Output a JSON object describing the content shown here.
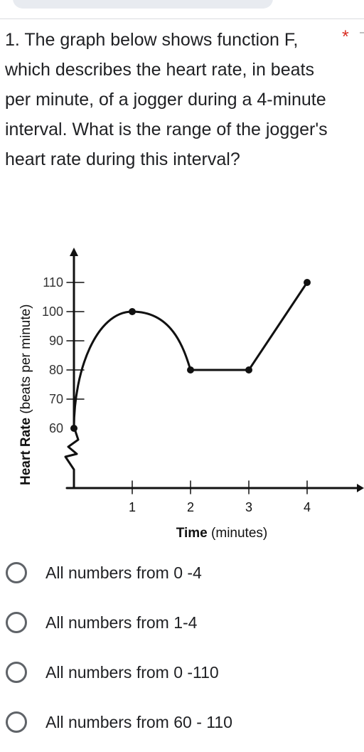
{
  "question": {
    "number_text": "1. The graph below shows function F, which describes the heart rate, in beats per minute, of a jogger during a 4-minute interval. What is the range of the jogger's heart rate during this interval?",
    "required_marker": "*"
  },
  "chart_data": {
    "type": "line",
    "xlabel_bold": "Time",
    "xlabel_rest": " (minutes)",
    "ylabel_bold": "Heart Rate",
    "ylabel_rest": " (beats per minute)",
    "x_ticks": [
      1,
      2,
      3,
      4
    ],
    "y_ticks": [
      60,
      70,
      80,
      90,
      100,
      110
    ],
    "x_tick_labels": [
      "1",
      "2",
      "3",
      "4"
    ],
    "y_tick_labels": [
      "60",
      "70",
      "80",
      "90",
      "100",
      "110"
    ],
    "xlim": [
      0,
      4
    ],
    "ylim": [
      60,
      110
    ],
    "axis_break_on_y": true,
    "segments": [
      {
        "shape": "curve",
        "points": [
          [
            0,
            60
          ],
          [
            1,
            100
          ],
          [
            2,
            80
          ]
        ]
      },
      {
        "shape": "line",
        "points": [
          [
            2,
            80
          ],
          [
            3,
            80
          ]
        ]
      },
      {
        "shape": "line",
        "points": [
          [
            3,
            80
          ],
          [
            4,
            110
          ]
        ]
      }
    ],
    "marked_points": [
      [
        0,
        60
      ],
      [
        1,
        100
      ],
      [
        2,
        80
      ],
      [
        3,
        80
      ],
      [
        4,
        110
      ]
    ]
  },
  "options": [
    {
      "label": "All numbers from 0 -4"
    },
    {
      "label": "All numbers from 1-4"
    },
    {
      "label": "All numbers from 0 -110"
    },
    {
      "label": "All numbers from 60 - 110"
    }
  ],
  "colors": {
    "required": "#d93025",
    "radio_border": "#5f6368",
    "text": "#202124"
  }
}
